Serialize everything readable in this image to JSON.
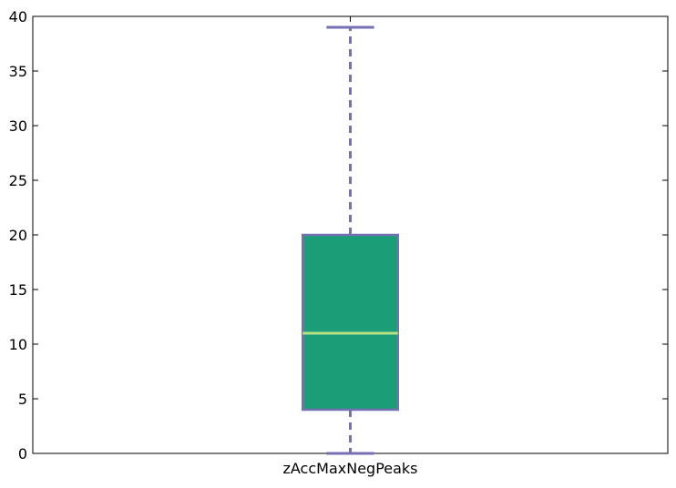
{
  "chart_data": {
    "type": "boxplot",
    "categories": [
      "zAccMaxNegPeaks"
    ],
    "boxes": [
      {
        "name": "zAccMaxNegPeaks",
        "whisker_low": 0,
        "q1": 4,
        "median": 11,
        "q3": 20,
        "whisker_high": 39
      }
    ],
    "ylim": [
      0,
      40
    ],
    "yticks": [
      0,
      5,
      10,
      15,
      20,
      25,
      30,
      35,
      40
    ],
    "xlabel": "",
    "ylabel": "",
    "title": "",
    "grid": false,
    "colors": {
      "box_fill": "#1b9e77",
      "box_edge": "#7570b3",
      "whisker": "#7570b3",
      "median": "#b8e186"
    }
  }
}
